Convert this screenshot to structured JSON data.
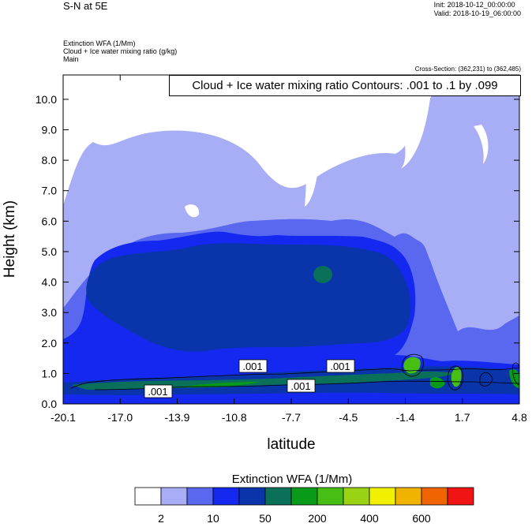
{
  "header": {
    "title": "S-N at 5E",
    "init": "Init: 2018-10-12_00:00:00",
    "valid": "Valid: 2018-10-19_06:00:00"
  },
  "fields": {
    "line1": "Extinction WFA   (1/Mm)",
    "line2": "Cloud + Ice water mixing ratio   (g/kg)",
    "line3": "Main"
  },
  "cross_section": "Cross-Section: (362,231) to (362,485)",
  "contour_info": "Cloud + Ice water mixing ratio Contours: .001 to .1 by .099",
  "contour_labels": [
    ".001",
    ".001",
    ".001",
    ".001"
  ],
  "colorbar": {
    "title": "Extinction WFA  (1/Mm)",
    "colors": [
      "#ffffff",
      "#a8aef5",
      "#5a68f0",
      "#1428f0",
      "#0a34aa",
      "#0a705a",
      "#0a9a1a",
      "#46be14",
      "#9ad214",
      "#f0f000",
      "#f0b400",
      "#f06400",
      "#f01414"
    ],
    "labels": [
      "2",
      "10",
      "50",
      "200",
      "400",
      "600"
    ]
  },
  "chart_data": {
    "type": "heatmap",
    "xlabel": "latitude",
    "ylabel": "Height (km)",
    "xlim": [
      -20.1,
      4.8
    ],
    "ylim": [
      0,
      10.8
    ],
    "xticks": [
      "-20.1",
      "-17.0",
      "-13.9",
      "-10.8",
      "-7.7",
      "-4.5",
      "-1.4",
      "1.7",
      "4.8"
    ],
    "yticks": [
      "0.0",
      "1.0",
      "2.0",
      "3.0",
      "4.0",
      "5.0",
      "6.0",
      "7.0",
      "8.0",
      "9.0",
      "10.0"
    ],
    "ytick_values": [
      0,
      1,
      2,
      3,
      4,
      5,
      6,
      7,
      8,
      9,
      10
    ]
  }
}
